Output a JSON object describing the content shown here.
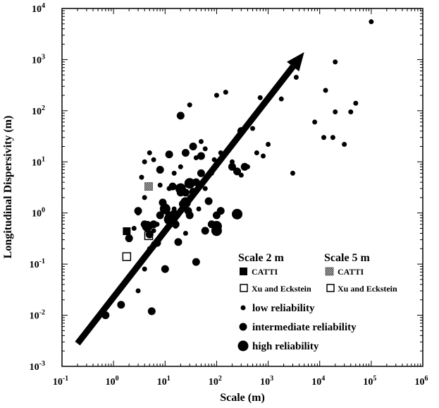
{
  "chart_data": {
    "type": "scatter",
    "xlabel": "Scale (m)",
    "ylabel": "Longitudinal Dispersivity (m)",
    "xscale": "log",
    "yscale": "log",
    "xlim": [
      0.1,
      1000000
    ],
    "ylim": [
      0.001,
      10000
    ],
    "x_ticks": [
      {
        "base": "10",
        "exp": "-1"
      },
      {
        "base": "10",
        "exp": "0"
      },
      {
        "base": "10",
        "exp": "1"
      },
      {
        "base": "10",
        "exp": "2"
      },
      {
        "base": "10",
        "exp": "3"
      },
      {
        "base": "10",
        "exp": "4"
      },
      {
        "base": "10",
        "exp": "5"
      },
      {
        "base": "10",
        "exp": "6"
      }
    ],
    "y_ticks": [
      {
        "base": "10",
        "exp": "-3"
      },
      {
        "base": "10",
        "exp": "-2"
      },
      {
        "base": "10",
        "exp": "-1"
      },
      {
        "base": "10",
        "exp": "0"
      },
      {
        "base": "10",
        "exp": "1"
      },
      {
        "base": "10",
        "exp": "2"
      },
      {
        "base": "10",
        "exp": "3"
      },
      {
        "base": "10",
        "exp": "4"
      }
    ],
    "trend_arrow": {
      "from": [
        0.2,
        0.0028
      ],
      "to": [
        5000,
        1400
      ]
    },
    "legend": {
      "placement": "bottom-right",
      "heading_left": "Scale 2 m",
      "heading_right": "Scale 5 m",
      "catti_left": "CATTI",
      "catti_right": "CATTI",
      "xu_left": "Xu and Eckstein",
      "xu_right": "Xu and Eckstein",
      "low": "low reliability",
      "intermediate": "intermediate reliability",
      "high": "high reliability"
    },
    "series": [
      {
        "name": "CATTI (Scale 2 m)",
        "marker": "filled-square",
        "points": [
          [
            1.8,
            0.44
          ]
        ]
      },
      {
        "name": "Xu and Eckstein (Scale 2 m)",
        "marker": "open-square",
        "points": [
          [
            1.8,
            0.14
          ]
        ]
      },
      {
        "name": "CATTI (Scale 5 m)",
        "marker": "hatched-square",
        "points": [
          [
            4.8,
            3.3
          ]
        ]
      },
      {
        "name": "Xu and Eckstein (Scale 5 m)",
        "marker": "open-square",
        "points": [
          [
            4.8,
            0.36
          ]
        ]
      },
      {
        "name": "low reliability",
        "marker": "small-dot",
        "points": [
          [
            100000,
            5500
          ],
          [
            20000,
            900
          ],
          [
            3500,
            450
          ],
          [
            150,
            230
          ],
          [
            100,
            200
          ],
          [
            700,
            180
          ],
          [
            1800,
            170
          ],
          [
            30,
            130
          ],
          [
            8,
            3.5
          ],
          [
            15,
            6
          ],
          [
            4,
            10
          ],
          [
            5,
            15
          ],
          [
            6,
            11
          ],
          [
            3.5,
            5
          ],
          [
            4,
            2
          ],
          [
            3,
            1
          ],
          [
            2.5,
            0.5
          ],
          [
            4,
            0.08
          ],
          [
            3,
            0.03
          ],
          [
            5,
            0.2
          ],
          [
            6,
            0.45
          ],
          [
            7,
            0.6
          ],
          [
            12,
            3
          ],
          [
            20,
            8
          ],
          [
            25,
            15
          ],
          [
            40,
            12
          ],
          [
            50,
            25
          ],
          [
            60,
            18
          ],
          [
            80,
            6
          ],
          [
            90,
            11
          ],
          [
            120,
            15
          ],
          [
            200,
            10
          ],
          [
            300,
            35
          ],
          [
            500,
            45
          ],
          [
            600,
            15
          ],
          [
            800,
            13
          ],
          [
            1000,
            22
          ],
          [
            3000,
            6
          ],
          [
            400,
            8
          ],
          [
            300,
            5.5
          ],
          [
            8000,
            60
          ],
          [
            12000,
            30
          ],
          [
            18000,
            30
          ],
          [
            30000,
            22
          ],
          [
            40000,
            95
          ],
          [
            50000,
            140
          ],
          [
            20000,
            95
          ],
          [
            13000,
            250
          ],
          [
            10,
            1.4
          ],
          [
            15,
            1.2
          ],
          [
            18,
            0.9
          ],
          [
            30,
            2
          ],
          [
            45,
            1.2
          ],
          [
            8,
            0.35
          ],
          [
            6,
            0.25
          ],
          [
            25,
            0.4
          ],
          [
            35,
            4
          ],
          [
            60,
            3
          ],
          [
            16,
            0.55
          ]
        ]
      },
      {
        "name": "intermediate reliability",
        "marker": "medium-dot",
        "points": [
          [
            0.7,
            0.01
          ],
          [
            1.4,
            0.016
          ],
          [
            5.5,
            0.012
          ],
          [
            10,
            0.08
          ],
          [
            40,
            0.11
          ],
          [
            2,
            0.32
          ],
          [
            3,
            1.1
          ],
          [
            4,
            0.6
          ],
          [
            5,
            0.38
          ],
          [
            6,
            0.6
          ],
          [
            7,
            0.26
          ],
          [
            8,
            0.9
          ],
          [
            9,
            1.6
          ],
          [
            10,
            1.2
          ],
          [
            12,
            0.9
          ],
          [
            14,
            3.3
          ],
          [
            16,
            0.6
          ],
          [
            18,
            0.27
          ],
          [
            20,
            2.5
          ],
          [
            22,
            1.5
          ],
          [
            25,
            2.5
          ],
          [
            28,
            1.1
          ],
          [
            30,
            0.9
          ],
          [
            35,
            2.6
          ],
          [
            40,
            4
          ],
          [
            50,
            6
          ],
          [
            60,
            0.45
          ],
          [
            70,
            1.7
          ],
          [
            80,
            0.6
          ],
          [
            100,
            0.9
          ],
          [
            120,
            1.1
          ],
          [
            200,
            8
          ],
          [
            250,
            6.5
          ],
          [
            300,
            40
          ],
          [
            350,
            8
          ],
          [
            20,
            80
          ],
          [
            12,
            14
          ],
          [
            25,
            15
          ],
          [
            35,
            20
          ],
          [
            50,
            13
          ],
          [
            8,
            7
          ]
        ]
      },
      {
        "name": "high reliability",
        "marker": "large-dot",
        "points": [
          [
            4.5,
            0.55
          ],
          [
            10,
            1.2
          ],
          [
            12,
            0.75
          ],
          [
            15,
            0.9
          ],
          [
            20,
            3
          ],
          [
            25,
            1.6
          ],
          [
            30,
            3.8
          ],
          [
            100,
            0.55
          ],
          [
            100,
            0.45
          ],
          [
            250,
            0.95
          ]
        ]
      }
    ]
  }
}
